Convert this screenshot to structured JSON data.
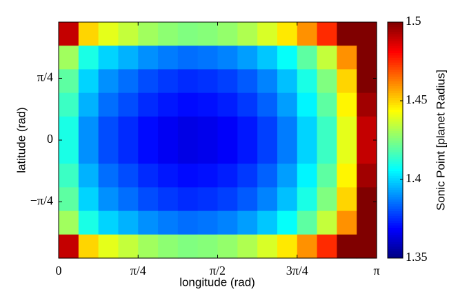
{
  "chart_data": {
    "type": "heatmap",
    "xlabel": "longitude (rad)",
    "ylabel": "latitude (rad)",
    "colorbar_label": "Sonic Point [planet Radius]",
    "xlim": [
      0,
      3.1416
    ],
    "ylim": [
      -1.5,
      1.5
    ],
    "xticks": [
      0,
      {
        "value": 0.7854,
        "label": "π/4"
      },
      {
        "value": 1.5708,
        "label": "π/2"
      },
      {
        "value": 2.3562,
        "label": "3π/4"
      },
      {
        "value": 3.1416,
        "label": "π"
      }
    ],
    "yticks": [
      {
        "value": 0.7854,
        "label": "π/4"
      },
      0,
      {
        "value": -0.7854,
        "label": "−π/4"
      }
    ],
    "clim": [
      1.35,
      1.5
    ],
    "cticks": [
      1.35,
      1.4,
      1.45,
      1.5
    ],
    "colormap": "jet",
    "z": [
      [
        1.49,
        1.45,
        1.44,
        1.435,
        1.43,
        1.427,
        1.425,
        1.426,
        1.428,
        1.432,
        1.438,
        1.447,
        1.46,
        1.475,
        1.5,
        1.5
      ],
      [
        1.43,
        1.41,
        1.4,
        1.395,
        1.39,
        1.387,
        1.385,
        1.386,
        1.388,
        1.392,
        1.398,
        1.407,
        1.42,
        1.435,
        1.46,
        1.5
      ],
      [
        1.42,
        1.4,
        1.39,
        1.385,
        1.38,
        1.377,
        1.375,
        1.376,
        1.378,
        1.382,
        1.388,
        1.397,
        1.41,
        1.425,
        1.45,
        1.5
      ],
      [
        1.415,
        1.395,
        1.385,
        1.38,
        1.375,
        1.372,
        1.37,
        1.371,
        1.373,
        1.377,
        1.383,
        1.392,
        1.405,
        1.42,
        1.445,
        1.495
      ],
      [
        1.41,
        1.39,
        1.38,
        1.375,
        1.37,
        1.367,
        1.365,
        1.366,
        1.368,
        1.372,
        1.378,
        1.387,
        1.4,
        1.415,
        1.44,
        1.49
      ],
      [
        1.41,
        1.39,
        1.38,
        1.375,
        1.37,
        1.367,
        1.365,
        1.366,
        1.368,
        1.372,
        1.378,
        1.387,
        1.4,
        1.415,
        1.44,
        1.49
      ],
      [
        1.415,
        1.395,
        1.385,
        1.38,
        1.375,
        1.372,
        1.37,
        1.371,
        1.373,
        1.377,
        1.383,
        1.392,
        1.405,
        1.42,
        1.445,
        1.495
      ],
      [
        1.42,
        1.4,
        1.39,
        1.385,
        1.38,
        1.377,
        1.375,
        1.376,
        1.378,
        1.382,
        1.388,
        1.397,
        1.41,
        1.425,
        1.45,
        1.5
      ],
      [
        1.43,
        1.41,
        1.4,
        1.395,
        1.39,
        1.387,
        1.385,
        1.386,
        1.388,
        1.392,
        1.398,
        1.407,
        1.42,
        1.435,
        1.46,
        1.5
      ],
      [
        1.49,
        1.45,
        1.44,
        1.435,
        1.43,
        1.427,
        1.425,
        1.426,
        1.428,
        1.432,
        1.438,
        1.447,
        1.46,
        1.475,
        1.5,
        1.5
      ]
    ]
  }
}
